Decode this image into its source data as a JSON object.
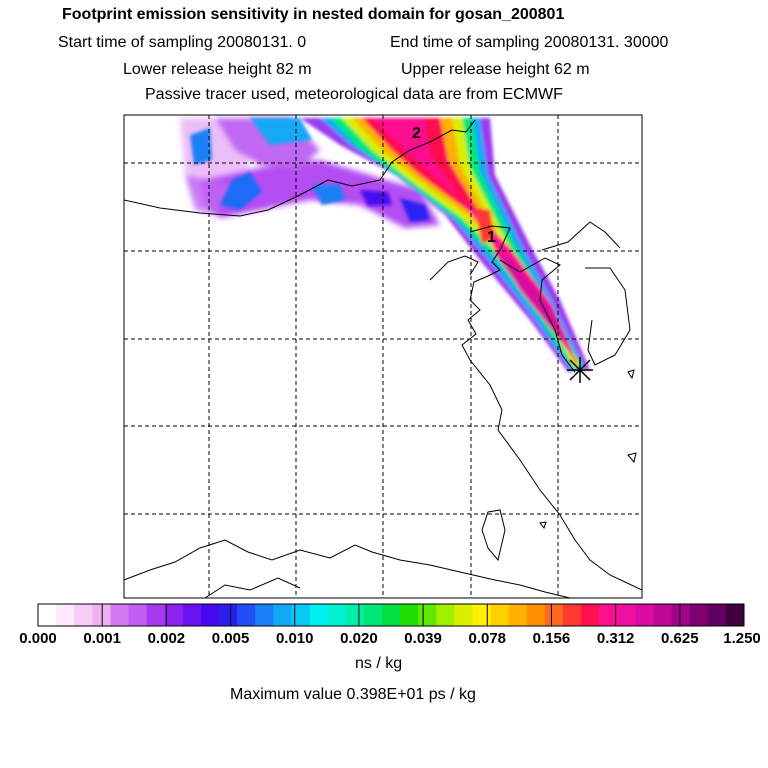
{
  "header": {
    "title": "Footprint emission sensitivity in nested domain for gosan_200801",
    "start_sampling": "Start time of sampling 20080131.     0",
    "end_sampling": "End time of sampling 20080131. 30000",
    "lower_release": "Lower release height   82 m",
    "upper_release": "Upper release height   62 m",
    "tracer_info": "Passive tracer used, meteorological data are from ECMWF"
  },
  "map": {
    "markers": [
      {
        "label": "1"
      },
      {
        "label": "2"
      }
    ],
    "receptor_symbol": "receptor-star"
  },
  "colorbar": {
    "colors": [
      "#ffffff",
      "#fde8fd",
      "#f7cdf7",
      "#efb2f0",
      "#d27cf0",
      "#c25ff2",
      "#a63af2",
      "#8b22f0",
      "#6a12f0",
      "#4a08f0",
      "#2b20f0",
      "#2050f5",
      "#1a80f5",
      "#12a8f5",
      "#08c8f5",
      "#00f0f0",
      "#00f0d0",
      "#00f0a8",
      "#00e878",
      "#00e040",
      "#20e000",
      "#60e800",
      "#a0ee00",
      "#d8f000",
      "#fff000",
      "#ffd000",
      "#ffb000",
      "#ff9000",
      "#ff6820",
      "#ff3830",
      "#ff1050",
      "#ff1090",
      "#f010a0",
      "#d80ca0",
      "#c00898",
      "#a00488",
      "#800070",
      "#600060",
      "#400040"
    ],
    "ticks": [
      "0.000",
      "0.001",
      "0.002",
      "0.005",
      "0.010",
      "0.020",
      "0.039",
      "0.078",
      "0.156",
      "0.312",
      "0.625",
      "1.250"
    ]
  },
  "units": "ns / kg",
  "max_value": "Maximum value  0.398E+01 ps / kg"
}
